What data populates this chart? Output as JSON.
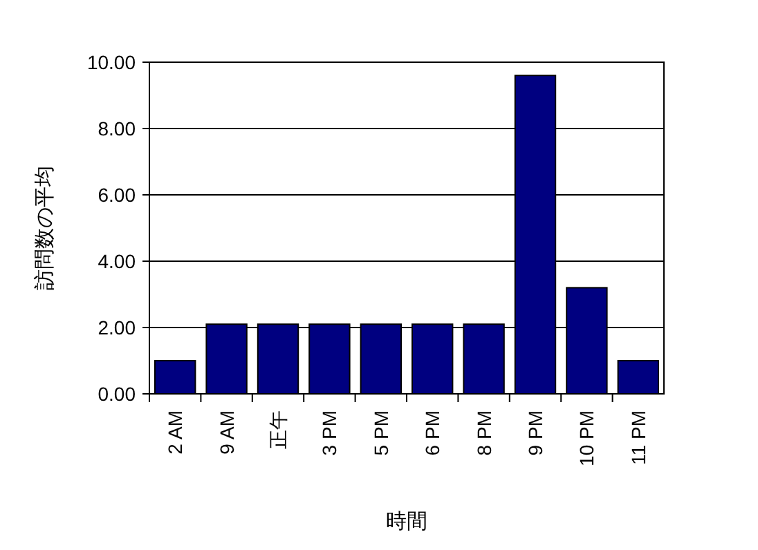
{
  "chart_data": {
    "type": "bar",
    "xlabel": "時間",
    "ylabel": "訪問数の平均",
    "categories": [
      "2 AM",
      "9 AM",
      "正午",
      "3 PM",
      "5 PM",
      "6 PM",
      "8 PM",
      "9 PM",
      "10 PM",
      "11 PM"
    ],
    "values": [
      1.0,
      2.1,
      2.1,
      2.1,
      2.1,
      2.1,
      2.1,
      9.6,
      3.2,
      1.0
    ],
    "color": "#000080",
    "ylim": [
      0,
      10
    ],
    "yticks": [
      {
        "value": 0,
        "label": "0.00"
      },
      {
        "value": 2,
        "label": "2.00"
      },
      {
        "value": 4,
        "label": "4.00"
      },
      {
        "value": 6,
        "label": "6.00"
      },
      {
        "value": 8,
        "label": "8.00"
      },
      {
        "value": 10,
        "label": "10.00"
      }
    ],
    "grid": "y"
  }
}
